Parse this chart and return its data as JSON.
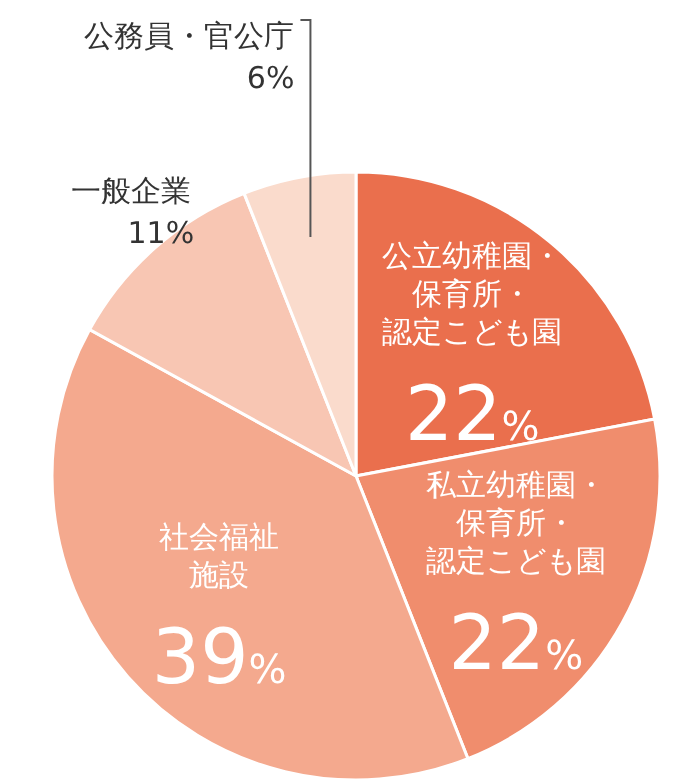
{
  "chart_data": {
    "type": "pie",
    "categories": [
      "公立幼稚園・保育所・認定こども園",
      "私立幼稚園・保育所・認定こども園",
      "社会福祉施設",
      "一般企業",
      "公務員・官公庁"
    ],
    "values": [
      22,
      22,
      39,
      11,
      6
    ],
    "value_labels": [
      "22%",
      "22%",
      "39%",
      "11%",
      "6%"
    ],
    "colors": [
      "#ea6f4d",
      "#f08d6d",
      "#f4a98e",
      "#f8c6b3",
      "#fadbcc"
    ],
    "data_labels": true,
    "legend": false
  }
}
